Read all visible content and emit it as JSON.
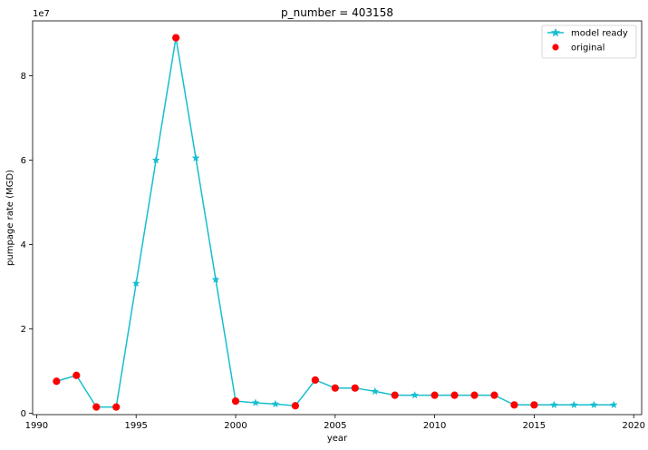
{
  "chart_data": {
    "type": "line",
    "title": "p_number = 403158",
    "xlabel": "year",
    "ylabel": "pumpage rate (MGD)",
    "y_offset_label": "1e7",
    "xlim": [
      1989.8,
      2020.4
    ],
    "ylim": [
      -300000,
      93000000
    ],
    "x_ticks": [
      1990,
      1995,
      2000,
      2005,
      2010,
      2015,
      2020
    ],
    "x_tick_labels": [
      "1990",
      "1995",
      "2000",
      "2005",
      "2010",
      "2015",
      "2020"
    ],
    "y_ticks": [
      0,
      20000000,
      40000000,
      60000000,
      80000000
    ],
    "y_tick_labels": [
      "0",
      "2",
      "4",
      "6",
      "8"
    ],
    "grid": false,
    "legend_position": "top-right",
    "series": [
      {
        "name": "model ready",
        "color": "#17becf",
        "marker": "star",
        "line": true,
        "x": [
          1991,
          1992,
          1993,
          1994,
          1995,
          1996,
          1997,
          1998,
          1999,
          2000,
          2001,
          2002,
          2003,
          2004,
          2005,
          2006,
          2007,
          2008,
          2009,
          2010,
          2011,
          2012,
          2013,
          2014,
          2015,
          2016,
          2017,
          2018,
          2019
        ],
        "y": [
          7600000,
          9000000,
          1500000,
          1500000,
          30800000,
          60000000,
          89000000,
          60500000,
          31700000,
          2900000,
          2500000,
          2200000,
          1800000,
          7900000,
          6000000,
          6000000,
          5200000,
          4300000,
          4300000,
          4300000,
          4300000,
          4300000,
          4300000,
          2000000,
          2000000,
          2000000,
          2000000,
          2000000,
          2000000
        ]
      },
      {
        "name": "original",
        "color": "#ff0000",
        "marker": "circle",
        "line": false,
        "x": [
          1991,
          1992,
          1993,
          1994,
          1997,
          2000,
          2003,
          2004,
          2005,
          2006,
          2008,
          2010,
          2011,
          2012,
          2013,
          2014,
          2015
        ],
        "y": [
          7600000,
          9000000,
          1500000,
          1500000,
          89000000,
          2900000,
          1800000,
          7900000,
          6000000,
          6000000,
          4300000,
          4300000,
          4300000,
          4300000,
          4300000,
          2000000,
          2000000
        ]
      }
    ]
  }
}
